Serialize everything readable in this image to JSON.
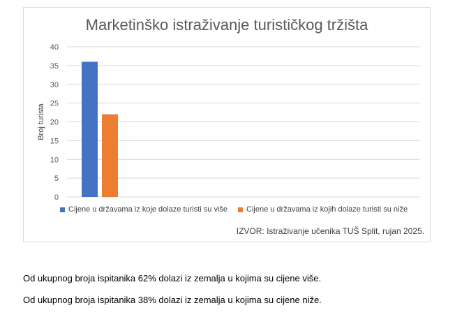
{
  "chart_data": {
    "type": "bar",
    "title": "Marketinško istraživanje turističkog tržišta",
    "ylabel": "Broj turista",
    "xlabel": "",
    "ylim": [
      0,
      40
    ],
    "yticks": [
      "0",
      "5",
      "10",
      "15",
      "20",
      "25",
      "30",
      "35",
      "40"
    ],
    "grid": true,
    "legend_position": "bottom",
    "series": [
      {
        "name": "Cijene u državama iz koje dolaze turisti su više",
        "values": [
          36
        ],
        "color": "#4472c4"
      },
      {
        "name": "Cijene u državama iz kojih dolaze turisti su niže",
        "values": [
          22
        ],
        "color": "#ed7d31"
      }
    ],
    "source": "IZVOR: Istraživanje učenika TUŠ Split, rujan 2025."
  },
  "paragraphs": [
    "Od ukupnog broja ispitanika 62% dolazi iz zemalja u kojima su cijene više.",
    "Od ukupnog broja ispitanika 38% dolazi iz zemalja u kojima su cijene niže."
  ]
}
